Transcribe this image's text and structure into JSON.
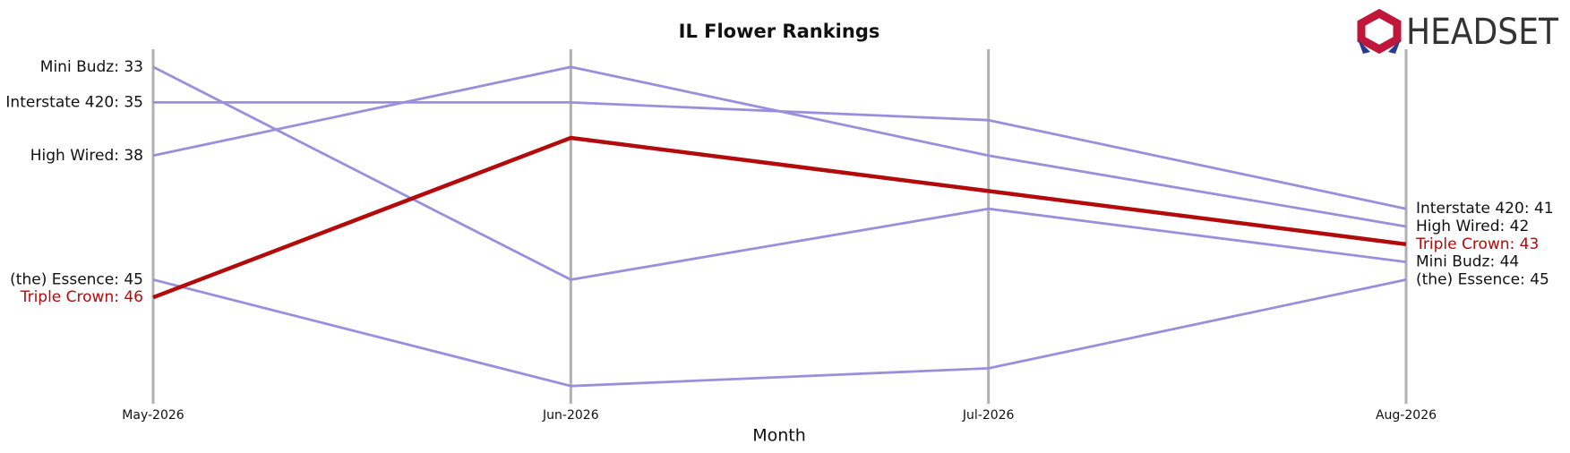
{
  "chart_data": {
    "type": "bump",
    "title": "IL Flower Rankings",
    "x_label": "Month",
    "logo_text": "HEADSET",
    "categories": [
      "May-2026",
      "Jun-2026",
      "Jul-2026",
      "Aug-2026"
    ],
    "ylim": [
      52,
      32
    ],
    "grid": true,
    "grid_color": "#b0b0b0",
    "series": [
      {
        "name": "Mini Budz",
        "color": "#9b8fdb",
        "label_color": "#111111",
        "values": [
          33,
          45,
          41,
          44
        ],
        "value_labels": [
          "Mini Budz: 33",
          null,
          null,
          "Mini Budz: 44"
        ]
      },
      {
        "name": "Interstate 420",
        "color": "#9b8fdb",
        "label_color": "#111111",
        "values": [
          35,
          35,
          36,
          41
        ],
        "value_labels": [
          "Interstate 420: 35",
          null,
          null,
          "Interstate 420: 41"
        ]
      },
      {
        "name": "High Wired",
        "color": "#9b8fdb",
        "label_color": "#111111",
        "values": [
          38,
          33,
          38,
          42
        ],
        "value_labels": [
          "High Wired: 38",
          null,
          null,
          "High Wired: 42"
        ]
      },
      {
        "name": "(the) Essence",
        "color": "#9b8fdb",
        "label_color": "#111111",
        "values": [
          45,
          51,
          50,
          45
        ],
        "value_labels": [
          "(the) Essence: 45",
          null,
          null,
          "(the) Essence: 45"
        ]
      },
      {
        "name": "Triple Crown",
        "color": "#b30b0b",
        "label_color": "#b30b0b",
        "values": [
          46,
          37,
          40,
          43
        ],
        "value_labels": [
          "Triple Crown: 46",
          null,
          null,
          "Triple Crown: 43"
        ]
      }
    ]
  }
}
